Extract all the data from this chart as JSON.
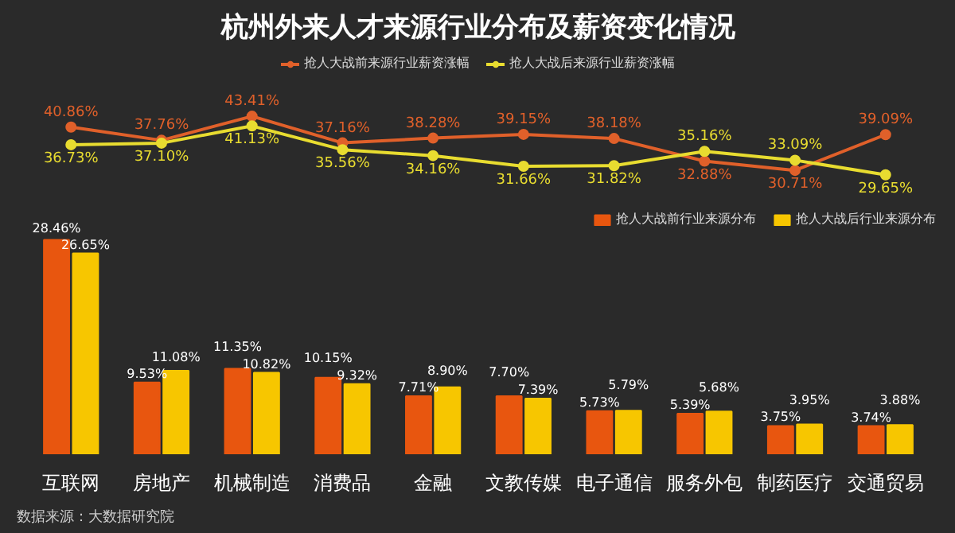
{
  "chart_data": [
    {
      "type": "line",
      "title": "杭州外来人才来源行业分布及薪资变化情况",
      "categories": [
        null,
        null,
        null,
        null,
        null,
        null,
        null,
        null,
        null,
        null
      ],
      "tick_labels": false,
      "marker": "circle",
      "legend": "top",
      "grid": false,
      "series": [
        {
          "name": "抢人大战前来源行业薪资涨幅",
          "color": "#e0602a",
          "values": [
            40.86,
            37.76,
            43.41,
            37.16,
            38.28,
            39.15,
            38.18,
            32.88,
            30.71,
            39.09
          ],
          "value_labels": [
            "40.86%",
            "37.76%",
            "43.41%",
            "37.16%",
            "38.28%",
            "39.15%",
            "38.18%",
            "32.88%",
            "30.71%",
            "39.09%"
          ]
        },
        {
          "name": "抢人大战后来源行业薪资涨幅",
          "color": "#e8dc30",
          "values": [
            36.73,
            37.1,
            41.13,
            35.56,
            34.16,
            31.66,
            31.82,
            35.16,
            33.09,
            29.65
          ],
          "value_labels": [
            "36.73%",
            "37.10%",
            "41.13%",
            "35.56%",
            "34.16%",
            "31.66%",
            "31.82%",
            "35.16%",
            "33.09%",
            "29.65%"
          ]
        }
      ]
    },
    {
      "type": "bar",
      "categories": [
        "互联网",
        "房地产",
        "机械制造",
        "消费品",
        "金融",
        "文教传媒",
        "电子通信",
        "服务外包",
        "制药医疗",
        "交通贸易"
      ],
      "tick_labels": "x",
      "legend": "top right",
      "grid": false,
      "series": [
        {
          "name": "抢人大战前行业来源分布",
          "color": "#e8560f",
          "values": [
            28.46,
            9.53,
            11.35,
            10.15,
            7.71,
            7.7,
            5.73,
            5.39,
            3.75,
            3.74
          ],
          "value_labels": [
            "28.46%",
            "9.53%",
            "11.35%",
            "10.15%",
            "7.71%",
            "7.70%",
            "5.73%",
            "5.39%",
            "3.75%",
            "3.74%"
          ]
        },
        {
          "name": "抢人大战后行业来源分布",
          "color": "#f7c600",
          "values": [
            26.65,
            11.08,
            10.82,
            9.32,
            8.9,
            7.39,
            5.79,
            5.68,
            3.95,
            3.88
          ],
          "value_labels": [
            "26.65%",
            "11.08%",
            "10.82%",
            "9.32%",
            "8.90%",
            "7.39%",
            "5.79%",
            "5.68%",
            "3.95%",
            "3.88%"
          ]
        }
      ],
      "annotations": [
        "数据来源：大数据研究院"
      ]
    }
  ]
}
